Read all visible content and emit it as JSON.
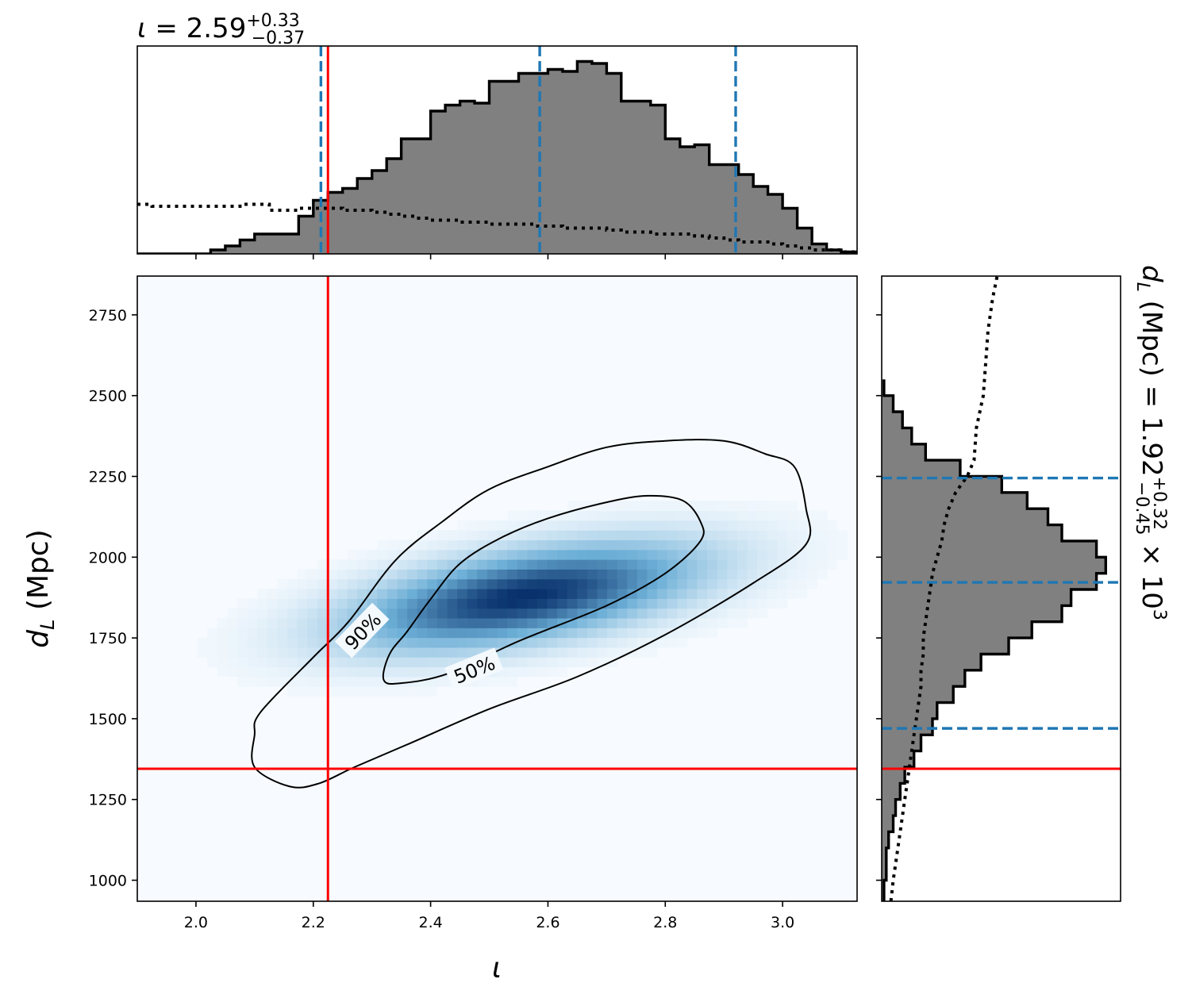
{
  "chart_data": {
    "type": "corner",
    "title_top": {
      "symbol": "ι",
      "text": " = 2.59",
      "upper": "+0.33",
      "lower": "−0.37"
    },
    "title_right": {
      "prefix": "d",
      "subscript": "L",
      "text": " (Mpc) = 1.92",
      "upper": "+0.32",
      "lower": "−0.45",
      "multiplier": " × 10",
      "exponent": "3"
    },
    "xlabel": "ι",
    "ylabel": {
      "prefix": "d",
      "subscript": "L",
      "text": " (Mpc)"
    },
    "xlim": [
      1.9,
      3.127
    ],
    "ylim": [
      935,
      2870
    ],
    "x_ticks": [
      2.0,
      2.2,
      2.4,
      2.6,
      2.8,
      3.0
    ],
    "x_tick_labels": [
      "2.0",
      "2.2",
      "2.4",
      "2.6",
      "2.8",
      "3.0"
    ],
    "y_ticks": [
      1000,
      1250,
      1500,
      1750,
      2000,
      2250,
      2500,
      2750
    ],
    "y_tick_labels": [
      "1000",
      "1250",
      "1500",
      "1750",
      "2000",
      "2250",
      "2500",
      "2750"
    ],
    "injection": {
      "iota": 2.225,
      "dL": 1345
    },
    "iota_quantiles": [
      2.213,
      2.586,
      2.92
    ],
    "dL_quantiles": [
      1470,
      1922,
      2245
    ],
    "contour_labels": [
      "90%",
      "50%"
    ],
    "contour_90": [
      [
        2.1,
        1350
      ],
      [
        2.16,
        1290
      ],
      [
        2.21,
        1300
      ],
      [
        2.27,
        1350
      ],
      [
        2.36,
        1420
      ],
      [
        2.5,
        1530
      ],
      [
        2.65,
        1630
      ],
      [
        2.8,
        1760
      ],
      [
        2.95,
        1920
      ],
      [
        3.04,
        2040
      ],
      [
        3.04,
        2150
      ],
      [
        3.02,
        2280
      ],
      [
        2.97,
        2320
      ],
      [
        2.9,
        2360
      ],
      [
        2.8,
        2360
      ],
      [
        2.7,
        2340
      ],
      [
        2.6,
        2280
      ],
      [
        2.5,
        2210
      ],
      [
        2.42,
        2110
      ],
      [
        2.34,
        1990
      ],
      [
        2.26,
        1800
      ],
      [
        2.2,
        1690
      ],
      [
        2.11,
        1520
      ],
      [
        2.1,
        1450
      ]
    ],
    "contour_50": [
      [
        2.32,
        1620
      ],
      [
        2.35,
        1610
      ],
      [
        2.43,
        1640
      ],
      [
        2.55,
        1740
      ],
      [
        2.7,
        1850
      ],
      [
        2.8,
        1950
      ],
      [
        2.86,
        2050
      ],
      [
        2.86,
        2110
      ],
      [
        2.83,
        2175
      ],
      [
        2.77,
        2190
      ],
      [
        2.7,
        2170
      ],
      [
        2.6,
        2120
      ],
      [
        2.52,
        2060
      ],
      [
        2.45,
        1980
      ],
      [
        2.4,
        1870
      ],
      [
        2.36,
        1770
      ],
      [
        2.33,
        1700
      ]
    ],
    "density_peak": {
      "iota": 2.56,
      "dL": 1880
    },
    "hist_iota_edges": [
      1.9,
      1.925,
      1.95,
      1.975,
      2.0,
      2.025,
      2.05,
      2.075,
      2.1,
      2.125,
      2.15,
      2.175,
      2.2,
      2.225,
      2.25,
      2.275,
      2.3,
      2.325,
      2.35,
      2.375,
      2.4,
      2.425,
      2.45,
      2.475,
      2.5,
      2.525,
      2.55,
      2.575,
      2.6,
      2.625,
      2.65,
      2.675,
      2.7,
      2.725,
      2.75,
      2.775,
      2.8,
      2.825,
      2.85,
      2.875,
      2.9,
      2.925,
      2.95,
      2.975,
      3.0,
      3.025,
      3.05,
      3.075,
      3.1,
      3.127
    ],
    "hist_iota_counts": [
      0.0,
      0.0,
      0.0,
      0.0,
      0.0,
      0.02,
      0.04,
      0.07,
      0.1,
      0.1,
      0.1,
      0.19,
      0.27,
      0.31,
      0.33,
      0.38,
      0.42,
      0.48,
      0.58,
      0.58,
      0.72,
      0.75,
      0.77,
      0.76,
      0.87,
      0.87,
      0.91,
      0.91,
      0.93,
      0.92,
      0.97,
      0.96,
      0.91,
      0.77,
      0.77,
      0.75,
      0.58,
      0.54,
      0.55,
      0.45,
      0.45,
      0.4,
      0.34,
      0.3,
      0.23,
      0.13,
      0.05,
      0.02,
      0.01
    ],
    "prior_iota": [
      0.25,
      0.24,
      0.24,
      0.24,
      0.24,
      0.24,
      0.24,
      0.25,
      0.25,
      0.22,
      0.22,
      0.23,
      0.23,
      0.23,
      0.22,
      0.22,
      0.21,
      0.2,
      0.19,
      0.18,
      0.17,
      0.17,
      0.16,
      0.16,
      0.15,
      0.15,
      0.15,
      0.14,
      0.14,
      0.13,
      0.13,
      0.13,
      0.12,
      0.11,
      0.11,
      0.1,
      0.1,
      0.1,
      0.09,
      0.08,
      0.07,
      0.06,
      0.06,
      0.05,
      0.04,
      0.03,
      0.02,
      0.02,
      0.01
    ],
    "hist_dL_edges": [
      935,
      1000,
      1050,
      1100,
      1150,
      1200,
      1250,
      1300,
      1350,
      1400,
      1450,
      1500,
      1550,
      1600,
      1650,
      1700,
      1750,
      1800,
      1850,
      1900,
      1950,
      2000,
      2050,
      2100,
      2150,
      2200,
      2250,
      2300,
      2350,
      2400,
      2450,
      2500,
      2550
    ],
    "hist_dL_counts": [
      0.01,
      0.02,
      0.02,
      0.03,
      0.05,
      0.06,
      0.08,
      0.1,
      0.14,
      0.17,
      0.22,
      0.24,
      0.31,
      0.36,
      0.43,
      0.55,
      0.65,
      0.78,
      0.82,
      0.93,
      0.97,
      0.93,
      0.78,
      0.72,
      0.63,
      0.52,
      0.34,
      0.19,
      0.13,
      0.09,
      0.05,
      0.01
    ],
    "prior_dL": [
      0.04,
      0.05,
      0.06,
      0.07,
      0.08,
      0.09,
      0.1,
      0.11,
      0.12,
      0.13,
      0.14,
      0.15,
      0.16,
      0.17,
      0.17,
      0.18,
      0.18,
      0.19,
      0.2,
      0.21,
      0.22,
      0.24,
      0.26,
      0.27,
      0.29,
      0.32,
      0.37,
      0.4,
      0.41,
      0.44,
      0.45,
      0.46,
      0.48,
      0.5
    ],
    "prior_dL_y": [
      935,
      1000,
      1050,
      1100,
      1150,
      1200,
      1250,
      1300,
      1350,
      1400,
      1450,
      1500,
      1550,
      1600,
      1650,
      1700,
      1750,
      1800,
      1850,
      1900,
      1950,
      2000,
      2050,
      2100,
      2150,
      2200,
      2250,
      2300,
      2400,
      2500,
      2600,
      2700,
      2800,
      2870
    ],
    "colors": {
      "histogram_fill": "#808080",
      "histogram_edge": "#000000",
      "quantile": "#1f77b4",
      "injection": "#ff0000",
      "density_low": "#f7fbff",
      "density_high": "#08306b",
      "contour": "#000000"
    }
  }
}
